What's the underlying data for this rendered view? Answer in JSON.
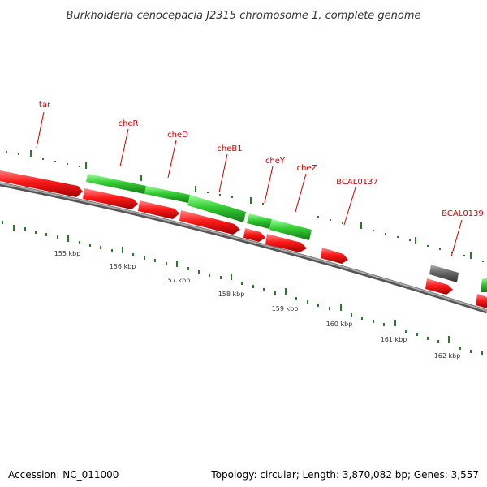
{
  "title": "Burkholderia cenocepacia J2315 chromosome 1, complete genome",
  "accession": "Accession: NC_011000",
  "summary": "Topology: circular; Length: 3,870,082 bp; Genes: 3,557",
  "colors": {
    "forward": "#33cc33",
    "reverse": "#ee1111",
    "other": "#666666",
    "backbone": "#888888",
    "ticks": "#2b7a2b",
    "label": "#cc0000"
  },
  "gene_labels": [
    {
      "name": "tar",
      "gene": "r_tar"
    },
    {
      "name": "cheR",
      "gene": "f_cheR"
    },
    {
      "name": "cheD",
      "gene": "f_cheD"
    },
    {
      "name": "cheB1",
      "gene": "f_cheB1"
    },
    {
      "name": "cheY",
      "gene": "f_cheY"
    },
    {
      "name": "cheZ",
      "gene": "f_cheZ"
    },
    {
      "name": "BCAL0137",
      "gene": "r_0137"
    },
    {
      "name": "BCAL0139",
      "gene": "g_0139"
    }
  ],
  "kbp_labels": [
    "155 kbp",
    "156 kbp",
    "157 kbp",
    "158 kbp",
    "159 kbp",
    "160 kbp",
    "161 kbp",
    "162 kbp"
  ]
}
